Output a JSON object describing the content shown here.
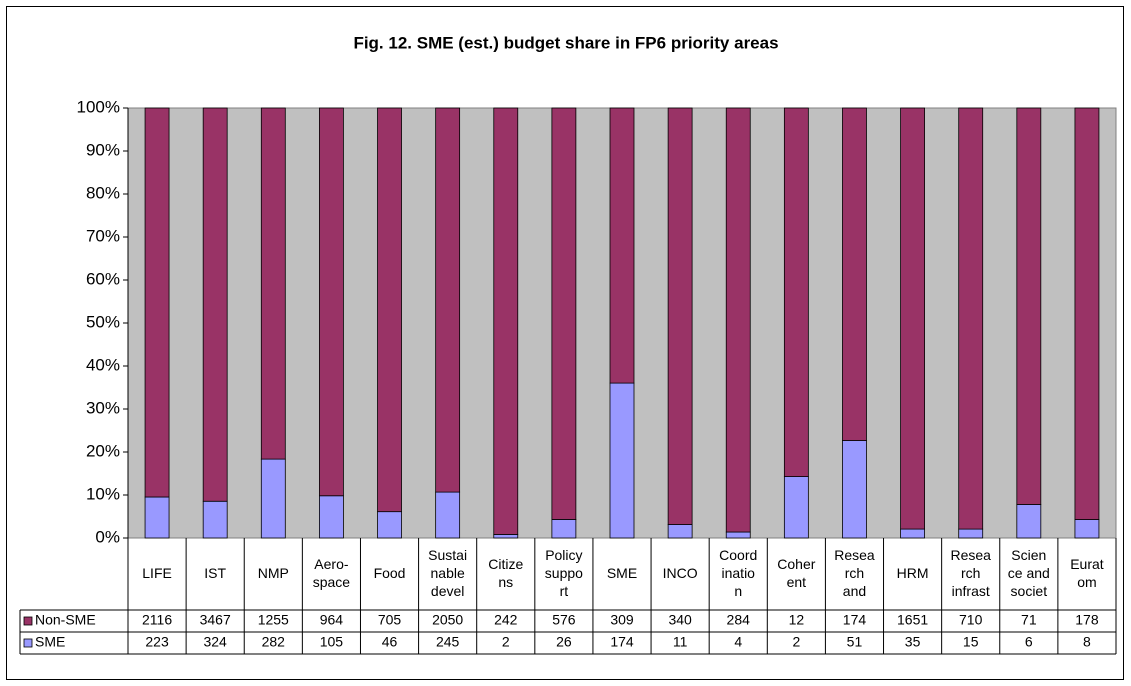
{
  "chart_data": {
    "type": "bar",
    "stacking": "percent",
    "title": "Fig. 12. SME (est.) budget share in FP6 priority areas",
    "categories": [
      "LIFE",
      "IST",
      "NMP",
      "Aero-\nspace",
      "Food",
      "Sustai\nnable\ndevel",
      "Citize\nns",
      "Policy\nsuppo\nrt",
      "SME",
      "INCO",
      "Coord\ninatio\nn",
      "Coher\nent",
      "Resea\nrch\nand",
      "HRM",
      "Resea\nrch\ninfrast",
      "Scien\nce and\nsociet",
      "Eurat\nom"
    ],
    "series": [
      {
        "name": "SME",
        "color": "#9999ff",
        "values": [
          223,
          324,
          282,
          105,
          46,
          245,
          2,
          26,
          174,
          11,
          4,
          2,
          51,
          35,
          15,
          6,
          8
        ]
      },
      {
        "name": "Non-SME",
        "color": "#993366",
        "values": [
          2116,
          3467,
          1255,
          964,
          705,
          2050,
          242,
          576,
          309,
          340,
          284,
          12,
          174,
          1651,
          710,
          71,
          178
        ]
      }
    ],
    "ylim": [
      0,
      100
    ],
    "yticks": [
      {
        "value": 0,
        "label": "0%"
      },
      {
        "value": 10,
        "label": "10%"
      },
      {
        "value": 20,
        "label": "20%"
      },
      {
        "value": 30,
        "label": "30%"
      },
      {
        "value": 40,
        "label": "40%"
      },
      {
        "value": 50,
        "label": "50%"
      },
      {
        "value": 60,
        "label": "60%"
      },
      {
        "value": 70,
        "label": "70%"
      },
      {
        "value": 80,
        "label": "80%"
      },
      {
        "value": 90,
        "label": "90%"
      },
      {
        "value": 100,
        "label": "100%"
      }
    ],
    "grid": false,
    "plot_background": "#c0c0c0"
  }
}
